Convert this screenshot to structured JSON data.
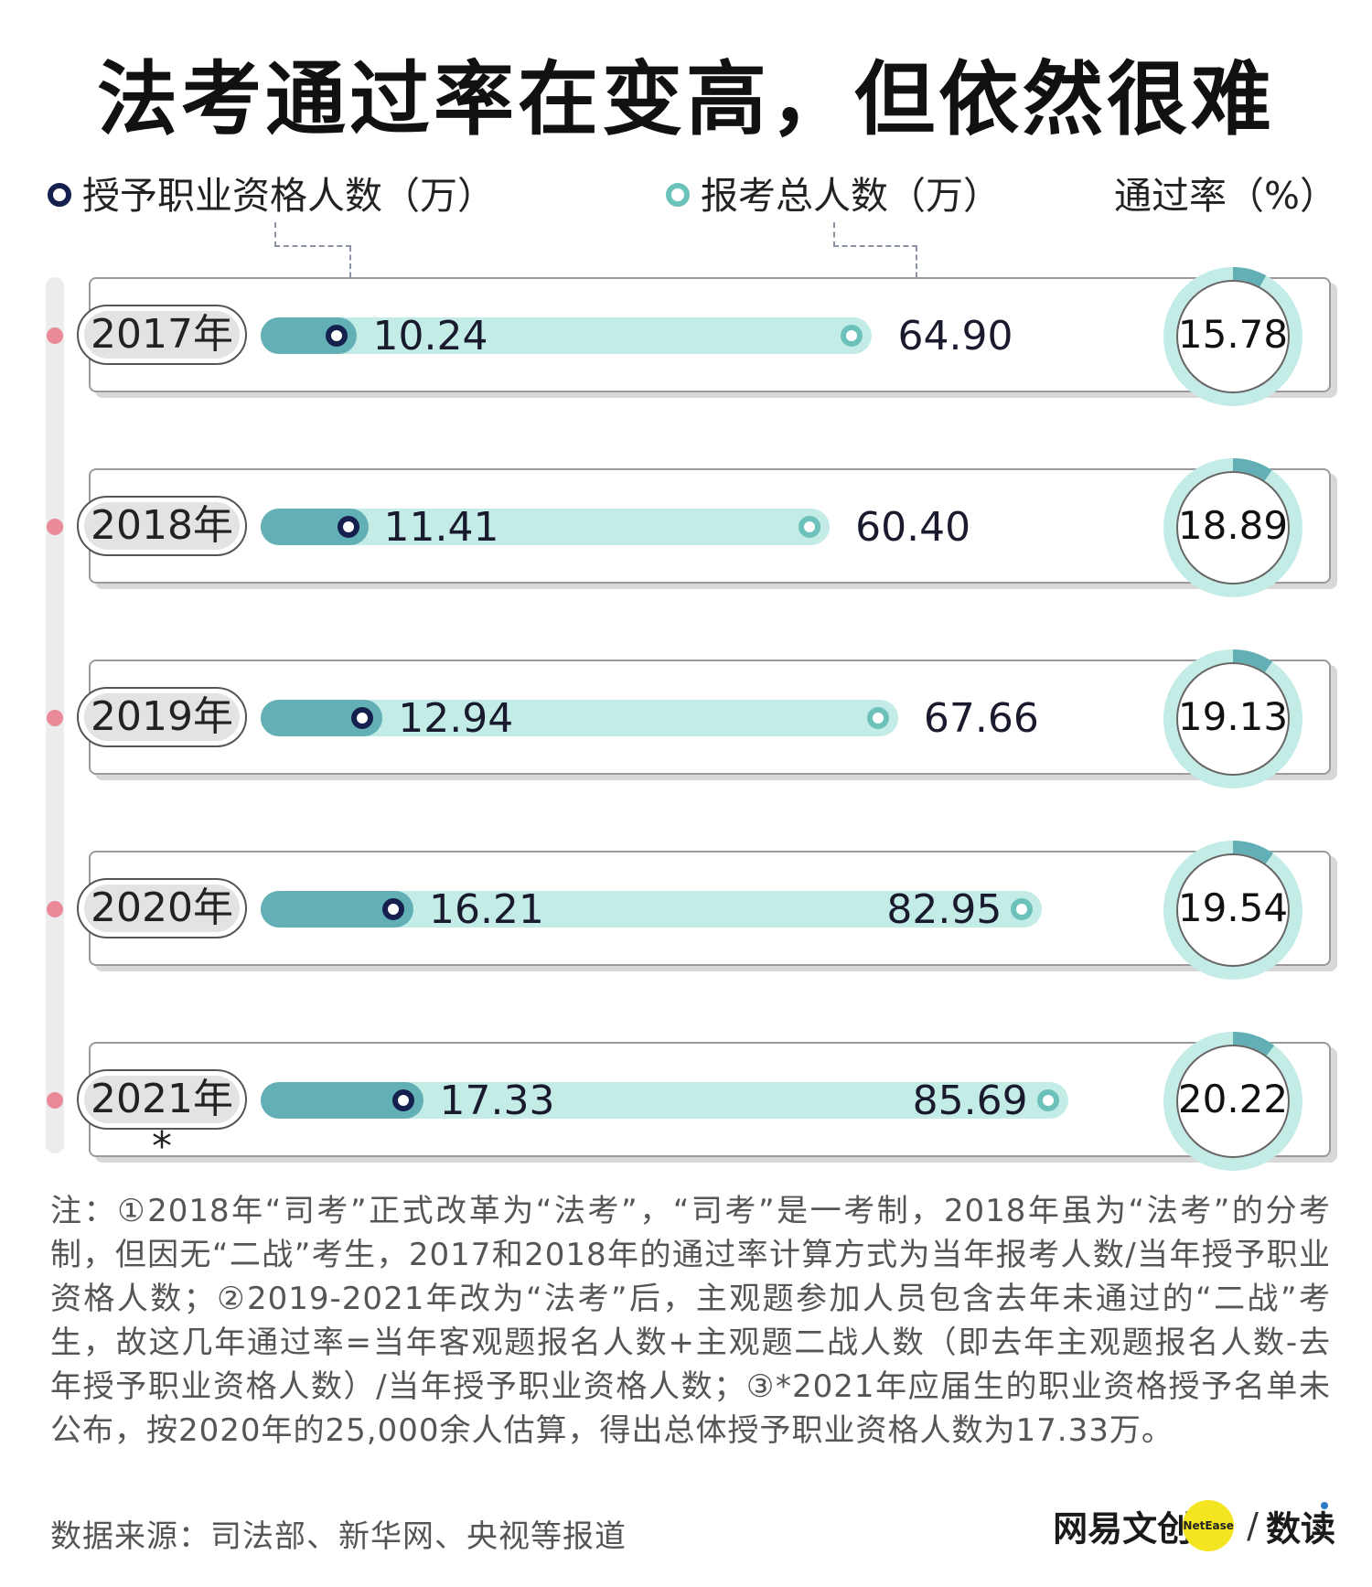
{
  "title": "法考通过率在变高，但依然很难",
  "legend": {
    "granted": "授予职业资格人数（万）",
    "total": "报考总人数（万）",
    "rate": "通过率（%）"
  },
  "colors": {
    "granted_bar": "#62b0b6",
    "total_bar": "#c3ece6",
    "granted_marker": "#16204e",
    "total_marker": "#6cc2bb",
    "timeline_dot": "#ea8a98",
    "ring_light": "#c3ece6",
    "ring_dark": "#62b0b6",
    "brand_yellow": "#f3e620"
  },
  "chart_data": {
    "type": "bar",
    "title": "法考通过率在变高，但依然很难",
    "categories": [
      "2017年",
      "2018年",
      "2019年",
      "2020年",
      "2021年*"
    ],
    "series": [
      {
        "name": "授予职业资格人数（万）",
        "values": [
          10.24,
          11.41,
          12.94,
          16.21,
          17.33
        ]
      },
      {
        "name": "报考总人数（万）",
        "values": [
          64.9,
          60.4,
          67.66,
          82.95,
          85.69
        ]
      },
      {
        "name": "通过率（%）",
        "values": [
          15.78,
          18.89,
          19.13,
          19.54,
          20.22
        ]
      }
    ],
    "value_labels": {
      "granted": [
        "10.24",
        "11.41",
        "12.94",
        "16.21",
        "17.33"
      ],
      "total": [
        "64.90",
        "60.40",
        "67.66",
        "82.95",
        "85.69"
      ],
      "rate": [
        "15.78",
        "18.89",
        "19.13",
        "19.54",
        "20.22"
      ]
    },
    "xlabel": "",
    "ylabel": "",
    "grid": false,
    "legend_position": "top"
  },
  "notes": "注：①2018年“司考”正式改革为“法考”，“司考”是一考制，2018年虽为“法考”的分考制，但因无“二战”考生，2017和2018年的通过率计算方式为当年报考人数/当年授予职业资格人数；②2019-2021年改为“法考”后，主观题参加人员包含去年未通过的“二战”考生，故这几年通过率=当年客观题报名人数+主观题二战人数（即去年主观题报名人数-去年授予职业资格人数）/当年授予职业资格人数；③*2021年应届生的职业资格授予名单未公布，按2020年的25,000余人估算，得出总体授予职业资格人数为17.33万。",
  "source": "数据来源：司法部、新华网、央视等报道",
  "brand": {
    "name": "网易文创",
    "badge": "NetEase",
    "slash": "/",
    "sub": "数读"
  }
}
